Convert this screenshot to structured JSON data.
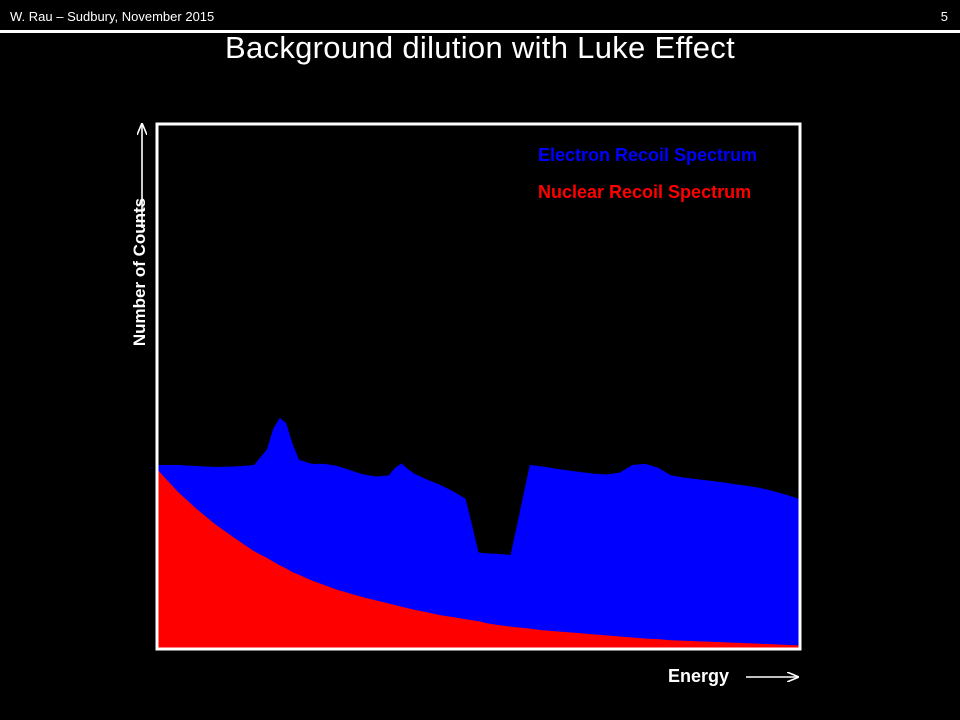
{
  "header": {
    "footer_text": "W. Rau – Sudbury, November 2015",
    "slide_number": "5"
  },
  "slide_title": "Background dilution with Luke Effect",
  "chart_data": {
    "type": "area",
    "title": "Background dilution with Luke Effect",
    "xlabel": "Energy",
    "ylabel": "Number of Counts",
    "xlim": [
      0,
      100
    ],
    "ylim": [
      0,
      100
    ],
    "grid": false,
    "legend_placement": "top-right",
    "x": [
      0,
      3,
      6,
      9,
      12,
      15,
      17,
      18,
      19,
      20,
      21,
      22,
      24,
      26,
      28,
      30,
      32,
      34,
      36,
      37,
      38,
      39,
      40,
      42,
      44,
      46,
      48,
      50,
      50.8,
      51,
      53,
      55,
      58,
      60,
      62,
      65,
      68,
      70,
      72,
      74,
      76,
      78,
      80,
      82,
      84,
      86,
      88,
      90,
      92,
      94,
      96,
      98,
      100
    ],
    "series": [
      {
        "name": "Electron Recoil Spectrum",
        "values": [
          35,
          35,
          34.8,
          34.6,
          34.7,
          35,
          38,
          42,
          44,
          43,
          39,
          36,
          35.2,
          35.2,
          34.8,
          34,
          33.2,
          32.8,
          33,
          34.5,
          35.3,
          34.2,
          33.3,
          32.2,
          31.2,
          30,
          28.5,
          18.3,
          18.1,
          18.1,
          18,
          17.8,
          35,
          34.7,
          34.3,
          33.8,
          33.3,
          33.2,
          33.5,
          35,
          35.2,
          34.5,
          33,
          32.6,
          32.3,
          32,
          31.7,
          31.3,
          31,
          30.6,
          30,
          29.3,
          28.5
        ],
        "color": "#0000ff"
      },
      {
        "name": "Nuclear Recoil Spectrum",
        "values": [
          34,
          30,
          26.6,
          23.6,
          21,
          18.5,
          17.2,
          16.5,
          15.8,
          15.2,
          14.5,
          14,
          12.9,
          12,
          11.1,
          10.4,
          9.7,
          9.1,
          8.5,
          8.2,
          7.9,
          7.6,
          7.3,
          6.8,
          6.3,
          5.9,
          5.5,
          5.1,
          4.9,
          4.8,
          4.4,
          4.1,
          3.7,
          3.4,
          3.2,
          2.9,
          2.6,
          2.4,
          2.2,
          2.0,
          1.8,
          1.7,
          1.5,
          1.4,
          1.3,
          1.2,
          1.1,
          1.0,
          0.9,
          0.8,
          0.7,
          0.6,
          0.5
        ],
        "color": "#ff0000"
      }
    ]
  }
}
